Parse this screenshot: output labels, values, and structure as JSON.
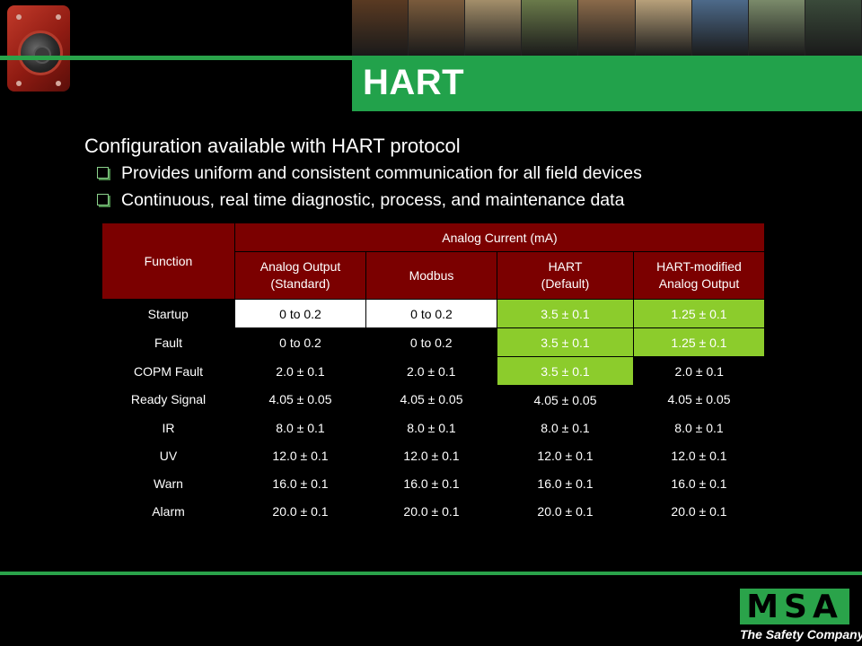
{
  "header": {
    "title": "HART",
    "photo_colors": [
      "#5a3a22",
      "#7a5b3c",
      "#a38e6a",
      "#6a7a4a",
      "#8a6a4a",
      "#b7a07a",
      "#4d6a8a",
      "#7a8a6a",
      "#3a4a3a"
    ]
  },
  "content": {
    "main_point": "Configuration available with HART protocol",
    "sub_points": [
      "Provides uniform and consistent communication for all field devices",
      "Continuous, real time diagnostic, process, and maintenance data"
    ]
  },
  "table": {
    "function_header": "Function",
    "group_header": "Analog Current (mA)",
    "col_headers": [
      [
        "Analog Output",
        "(Standard)"
      ],
      [
        "Modbus"
      ],
      [
        "HART",
        "(Default)"
      ],
      [
        "HART-modified",
        "Analog Output"
      ]
    ],
    "rows": [
      {
        "function": "Startup",
        "values": [
          "0 to 0.2",
          "0 to 0.2",
          "3.5 ± 0.1",
          "1.25 ± 0.1"
        ],
        "styles": [
          "w",
          "w",
          "g",
          "g"
        ]
      },
      {
        "function": "Fault",
        "values": [
          "0 to 0.2",
          "0 to 0.2",
          "3.5 ± 0.1",
          "1.25 ± 0.1"
        ],
        "styles": [
          "k",
          "k",
          "g",
          "g"
        ]
      },
      {
        "function": "COPM Fault",
        "values": [
          "2.0 ± 0.1",
          "2.0 ± 0.1",
          "3.5 ± 0.1",
          "2.0 ± 0.1"
        ],
        "styles": [
          "k",
          "k",
          "g",
          "k"
        ]
      },
      {
        "function": "Ready Signal",
        "values": [
          "4.05 ± 0.05",
          "4.05 ± 0.05",
          "4.05 ± 0.05",
          "4.05 ± 0.05"
        ],
        "styles": [
          "k",
          "k",
          "k",
          "k"
        ]
      },
      {
        "function": "IR",
        "values": [
          "8.0 ± 0.1",
          "8.0 ± 0.1",
          "8.0 ± 0.1",
          "8.0 ± 0.1"
        ],
        "styles": [
          "k",
          "k",
          "k",
          "k"
        ]
      },
      {
        "function": "UV",
        "values": [
          "12.0 ± 0.1",
          "12.0 ± 0.1",
          "12.0 ± 0.1",
          "12.0 ± 0.1"
        ],
        "styles": [
          "k",
          "k",
          "k",
          "k"
        ]
      },
      {
        "function": "Warn",
        "values": [
          "16.0 ± 0.1",
          "16.0 ± 0.1",
          "16.0 ± 0.1",
          "16.0 ± 0.1"
        ],
        "styles": [
          "k",
          "k",
          "k",
          "k"
        ]
      },
      {
        "function": "Alarm",
        "values": [
          "20.0 ± 0.1",
          "20.0 ± 0.1",
          "20.0 ± 0.1",
          "20.0 ± 0.1"
        ],
        "styles": [
          "k",
          "k",
          "k",
          "k"
        ]
      }
    ]
  },
  "footer": {
    "logo_letters": "MSA",
    "logo_tagline": "The Safety Company",
    "accent_color": "#2aa34a"
  }
}
